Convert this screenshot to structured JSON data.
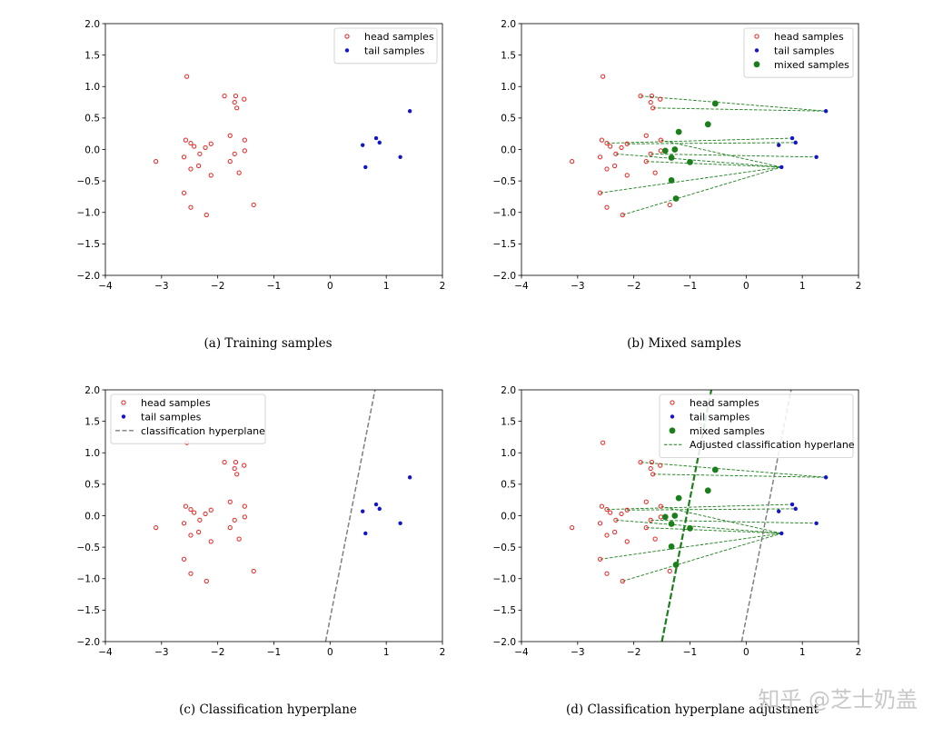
{
  "colors": {
    "head": "#e8201e",
    "tail": "#1414c8",
    "mixed": "#1a7f1a",
    "hyperplane": "#7f7f7f",
    "adjusted": "#1a7f1a",
    "watermark": "#c8c8c8"
  },
  "watermark": "知乎 @芝士奶盖",
  "chart_data": [
    {
      "type": "scatter",
      "caption": "(a) Training samples",
      "xlim": [
        -4,
        2
      ],
      "ylim": [
        -2,
        2
      ],
      "xticks": [
        -4,
        -3,
        -2,
        -1,
        0,
        1,
        2
      ],
      "yticks": [
        -2.0,
        -1.5,
        -1.0,
        -0.5,
        0.0,
        0.5,
        1.0,
        1.5,
        2.0
      ],
      "xtick_labels": [
        "−4",
        "−3",
        "−2",
        "−1",
        "0",
        "1",
        "2"
      ],
      "ytick_labels": [
        "−2.0",
        "−1.5",
        "−1.0",
        "−0.5",
        "0.0",
        "0.5",
        "1.0",
        "1.5",
        "2.0"
      ],
      "legend_position": "upper right",
      "legend": [
        "head samples",
        "tail samples"
      ],
      "head": [
        [
          -2.55,
          1.16
        ],
        [
          -1.88,
          0.85
        ],
        [
          -1.68,
          0.85
        ],
        [
          -1.53,
          0.8
        ],
        [
          -1.7,
          0.75
        ],
        [
          -1.66,
          0.66
        ],
        [
          -1.78,
          0.22
        ],
        [
          -2.57,
          0.15
        ],
        [
          -2.48,
          0.1
        ],
        [
          -2.42,
          0.05
        ],
        [
          -2.12,
          0.09
        ],
        [
          -2.22,
          0.03
        ],
        [
          -1.52,
          0.15
        ],
        [
          -1.52,
          -0.02
        ],
        [
          -1.7,
          -0.07
        ],
        [
          -2.6,
          -0.12
        ],
        [
          -2.32,
          -0.07
        ],
        [
          -3.1,
          -0.19
        ],
        [
          -1.78,
          -0.19
        ],
        [
          -2.48,
          -0.31
        ],
        [
          -2.34,
          -0.26
        ],
        [
          -2.12,
          -0.41
        ],
        [
          -1.62,
          -0.37
        ],
        [
          -2.6,
          -0.69
        ],
        [
          -2.48,
          -0.92
        ],
        [
          -2.2,
          -1.04
        ],
        [
          -1.36,
          -0.88
        ]
      ],
      "tail": [
        [
          1.42,
          0.61
        ],
        [
          0.82,
          0.18
        ],
        [
          0.88,
          0.11
        ],
        [
          0.58,
          0.07
        ],
        [
          1.25,
          -0.12
        ],
        [
          0.63,
          -0.28
        ]
      ],
      "mixed": [],
      "links": [],
      "hyperplanes": []
    },
    {
      "type": "scatter",
      "caption": "(b) Mixed samples",
      "xlim": [
        -4,
        2
      ],
      "ylim": [
        -2,
        2
      ],
      "xticks": [
        -4,
        -3,
        -2,
        -1,
        0,
        1,
        2
      ],
      "yticks": [
        -2.0,
        -1.5,
        -1.0,
        -0.5,
        0.0,
        0.5,
        1.0,
        1.5,
        2.0
      ],
      "xtick_labels": [
        "−4",
        "−3",
        "−2",
        "−1",
        "0",
        "1",
        "2"
      ],
      "ytick_labels": [
        "−2.0",
        "−1.5",
        "−1.0",
        "−0.5",
        "0.0",
        "0.5",
        "1.0",
        "1.5",
        "2.0"
      ],
      "legend_position": "upper right",
      "legend": [
        "head samples",
        "tail samples",
        "mixed samples"
      ],
      "head": [
        [
          -2.55,
          1.16
        ],
        [
          -1.88,
          0.85
        ],
        [
          -1.68,
          0.85
        ],
        [
          -1.53,
          0.8
        ],
        [
          -1.7,
          0.75
        ],
        [
          -1.66,
          0.66
        ],
        [
          -1.78,
          0.22
        ],
        [
          -2.57,
          0.15
        ],
        [
          -2.48,
          0.1
        ],
        [
          -2.42,
          0.05
        ],
        [
          -2.12,
          0.09
        ],
        [
          -2.22,
          0.03
        ],
        [
          -1.52,
          0.15
        ],
        [
          -1.52,
          -0.02
        ],
        [
          -1.7,
          -0.07
        ],
        [
          -2.6,
          -0.12
        ],
        [
          -2.32,
          -0.07
        ],
        [
          -3.1,
          -0.19
        ],
        [
          -1.78,
          -0.19
        ],
        [
          -2.48,
          -0.31
        ],
        [
          -2.34,
          -0.26
        ],
        [
          -2.12,
          -0.41
        ],
        [
          -1.62,
          -0.37
        ],
        [
          -2.6,
          -0.69
        ],
        [
          -2.48,
          -0.92
        ],
        [
          -2.2,
          -1.04
        ],
        [
          -1.36,
          -0.88
        ]
      ],
      "tail": [
        [
          1.42,
          0.61
        ],
        [
          0.82,
          0.18
        ],
        [
          0.88,
          0.11
        ],
        [
          0.58,
          0.07
        ],
        [
          1.25,
          -0.12
        ],
        [
          0.63,
          -0.28
        ]
      ],
      "mixed": [
        [
          -0.55,
          0.73
        ],
        [
          -0.68,
          0.4
        ],
        [
          -1.2,
          0.28
        ],
        [
          -1.44,
          -0.02
        ],
        [
          -1.27,
          0.0
        ],
        [
          -1.33,
          -0.13
        ],
        [
          -1.0,
          -0.2
        ],
        [
          -1.33,
          -0.49
        ],
        [
          -1.25,
          -0.78
        ]
      ],
      "links": [
        [
          [
            -1.88,
            0.85
          ],
          [
            1.42,
            0.61
          ]
        ],
        [
          [
            -1.66,
            0.66
          ],
          [
            1.42,
            0.61
          ]
        ],
        [
          [
            -2.48,
            0.1
          ],
          [
            0.82,
            0.18
          ]
        ],
        [
          [
            -2.12,
            0.09
          ],
          [
            0.88,
            0.11
          ]
        ],
        [
          [
            -1.52,
            0.15
          ],
          [
            0.63,
            -0.28
          ]
        ],
        [
          [
            -1.7,
            -0.07
          ],
          [
            1.25,
            -0.12
          ]
        ],
        [
          [
            -2.32,
            -0.07
          ],
          [
            0.63,
            -0.28
          ]
        ],
        [
          [
            -1.78,
            -0.19
          ],
          [
            0.63,
            -0.28
          ]
        ],
        [
          [
            -2.6,
            -0.69
          ],
          [
            0.63,
            -0.28
          ]
        ],
        [
          [
            -2.2,
            -1.04
          ],
          [
            0.63,
            -0.28
          ]
        ]
      ],
      "hyperplanes": []
    },
    {
      "type": "scatter",
      "caption": "(c) Classification hyperplane",
      "xlim": [
        -4,
        2
      ],
      "ylim": [
        -2,
        2
      ],
      "xticks": [
        -4,
        -3,
        -2,
        -1,
        0,
        1,
        2
      ],
      "yticks": [
        -2.0,
        -1.5,
        -1.0,
        -0.5,
        0.0,
        0.5,
        1.0,
        1.5,
        2.0
      ],
      "xtick_labels": [
        "−4",
        "−3",
        "−2",
        "−1",
        "0",
        "1",
        "2"
      ],
      "ytick_labels": [
        "−2.0",
        "−1.5",
        "−1.0",
        "−0.5",
        "0.0",
        "0.5",
        "1.0",
        "1.5",
        "2.0"
      ],
      "legend_position": "upper left",
      "legend": [
        "head samples",
        "tail samples",
        "classification hyperplane"
      ],
      "head": [
        [
          -2.55,
          1.16
        ],
        [
          -1.88,
          0.85
        ],
        [
          -1.68,
          0.85
        ],
        [
          -1.53,
          0.8
        ],
        [
          -1.7,
          0.75
        ],
        [
          -1.66,
          0.66
        ],
        [
          -1.78,
          0.22
        ],
        [
          -2.57,
          0.15
        ],
        [
          -2.48,
          0.1
        ],
        [
          -2.42,
          0.05
        ],
        [
          -2.12,
          0.09
        ],
        [
          -2.22,
          0.03
        ],
        [
          -1.52,
          0.15
        ],
        [
          -1.52,
          -0.02
        ],
        [
          -1.7,
          -0.07
        ],
        [
          -2.6,
          -0.12
        ],
        [
          -2.32,
          -0.07
        ],
        [
          -3.1,
          -0.19
        ],
        [
          -1.78,
          -0.19
        ],
        [
          -2.48,
          -0.31
        ],
        [
          -2.34,
          -0.26
        ],
        [
          -2.12,
          -0.41
        ],
        [
          -1.62,
          -0.37
        ],
        [
          -2.6,
          -0.69
        ],
        [
          -2.48,
          -0.92
        ],
        [
          -2.2,
          -1.04
        ],
        [
          -1.36,
          -0.88
        ]
      ],
      "tail": [
        [
          1.42,
          0.61
        ],
        [
          0.82,
          0.18
        ],
        [
          0.88,
          0.11
        ],
        [
          0.58,
          0.07
        ],
        [
          1.25,
          -0.12
        ],
        [
          0.63,
          -0.28
        ]
      ],
      "mixed": [],
      "links": [],
      "hyperplanes": [
        {
          "kind": "classification",
          "from": [
            -0.08,
            -2.0
          ],
          "to": [
            0.8,
            2.0
          ]
        }
      ]
    },
    {
      "type": "scatter",
      "caption": "(d) Classification hyperplane adjustment",
      "xlim": [
        -4,
        2
      ],
      "ylim": [
        -2,
        2
      ],
      "xticks": [
        -4,
        -3,
        -2,
        -1,
        0,
        1,
        2
      ],
      "yticks": [
        -2.0,
        -1.5,
        -1.0,
        -0.5,
        0.0,
        0.5,
        1.0,
        1.5,
        2.0
      ],
      "xtick_labels": [
        "−4",
        "−3",
        "−2",
        "−1",
        "0",
        "1",
        "2"
      ],
      "ytick_labels": [
        "−2.0",
        "−1.5",
        "−1.0",
        "−0.5",
        "0.0",
        "0.5",
        "1.0",
        "1.5",
        "2.0"
      ],
      "legend_position": "upper right",
      "legend": [
        "head samples",
        "tail samples",
        "mixed samples",
        "Adjusted classification hyperlane"
      ],
      "head": [
        [
          -2.55,
          1.16
        ],
        [
          -1.88,
          0.85
        ],
        [
          -1.68,
          0.85
        ],
        [
          -1.53,
          0.8
        ],
        [
          -1.7,
          0.75
        ],
        [
          -1.66,
          0.66
        ],
        [
          -1.78,
          0.22
        ],
        [
          -2.57,
          0.15
        ],
        [
          -2.48,
          0.1
        ],
        [
          -2.42,
          0.05
        ],
        [
          -2.12,
          0.09
        ],
        [
          -2.22,
          0.03
        ],
        [
          -1.52,
          0.15
        ],
        [
          -1.52,
          -0.02
        ],
        [
          -1.7,
          -0.07
        ],
        [
          -2.6,
          -0.12
        ],
        [
          -2.32,
          -0.07
        ],
        [
          -3.1,
          -0.19
        ],
        [
          -1.78,
          -0.19
        ],
        [
          -2.48,
          -0.31
        ],
        [
          -2.34,
          -0.26
        ],
        [
          -2.12,
          -0.41
        ],
        [
          -1.62,
          -0.37
        ],
        [
          -2.6,
          -0.69
        ],
        [
          -2.48,
          -0.92
        ],
        [
          -2.2,
          -1.04
        ],
        [
          -1.36,
          -0.88
        ]
      ],
      "tail": [
        [
          1.42,
          0.61
        ],
        [
          0.82,
          0.18
        ],
        [
          0.88,
          0.11
        ],
        [
          0.58,
          0.07
        ],
        [
          1.25,
          -0.12
        ],
        [
          0.63,
          -0.28
        ]
      ],
      "mixed": [
        [
          -0.55,
          0.73
        ],
        [
          -0.68,
          0.4
        ],
        [
          -1.2,
          0.28
        ],
        [
          -1.44,
          -0.02
        ],
        [
          -1.27,
          0.0
        ],
        [
          -1.33,
          -0.13
        ],
        [
          -1.0,
          -0.2
        ],
        [
          -1.33,
          -0.49
        ],
        [
          -1.25,
          -0.78
        ]
      ],
      "links": [
        [
          [
            -1.88,
            0.85
          ],
          [
            1.42,
            0.61
          ]
        ],
        [
          [
            -1.66,
            0.66
          ],
          [
            1.42,
            0.61
          ]
        ],
        [
          [
            -2.48,
            0.1
          ],
          [
            0.82,
            0.18
          ]
        ],
        [
          [
            -2.12,
            0.09
          ],
          [
            0.88,
            0.11
          ]
        ],
        [
          [
            -1.52,
            0.15
          ],
          [
            0.63,
            -0.28
          ]
        ],
        [
          [
            -1.7,
            -0.07
          ],
          [
            1.25,
            -0.12
          ]
        ],
        [
          [
            -2.32,
            -0.07
          ],
          [
            0.63,
            -0.28
          ]
        ],
        [
          [
            -1.78,
            -0.19
          ],
          [
            0.63,
            -0.28
          ]
        ],
        [
          [
            -2.6,
            -0.69
          ],
          [
            0.63,
            -0.28
          ]
        ],
        [
          [
            -2.2,
            -1.04
          ],
          [
            0.63,
            -0.28
          ]
        ]
      ],
      "hyperplanes": [
        {
          "kind": "classification",
          "from": [
            -0.08,
            -2.0
          ],
          "to": [
            0.8,
            2.0
          ]
        },
        {
          "kind": "adjusted",
          "from": [
            -1.5,
            -2.0
          ],
          "to": [
            -0.62,
            2.0
          ]
        }
      ]
    }
  ]
}
